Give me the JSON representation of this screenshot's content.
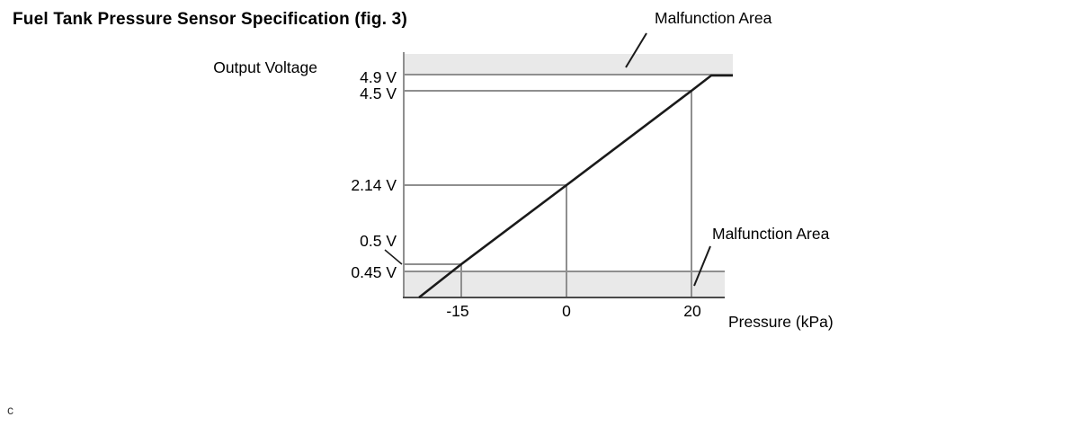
{
  "figure": {
    "corner_mark": "c"
  },
  "chart_data": {
    "type": "line",
    "title": "Fuel Tank Pressure Sensor Specification (fig. 3)",
    "xlabel": "Pressure (kPa)",
    "ylabel": "Output Voltage",
    "x_ticks": [
      {
        "value": -15,
        "label": "-15"
      },
      {
        "value": 0,
        "label": "0"
      },
      {
        "value": 20,
        "label": "20"
      }
    ],
    "y_ticks": [
      {
        "value": 4.9,
        "label": "4.9 V"
      },
      {
        "value": 4.5,
        "label": "4.5 V"
      },
      {
        "value": 2.14,
        "label": "2.14 V"
      },
      {
        "value": 0.5,
        "label": "0.5 V"
      },
      {
        "value": 0.45,
        "label": "0.45 V"
      }
    ],
    "series": [
      {
        "name": "output-voltage-vs-pressure",
        "points": [
          {
            "x": -21,
            "y": 0.0
          },
          {
            "x": -15,
            "y": 0.5
          },
          {
            "x": 0,
            "y": 2.14
          },
          {
            "x": 20,
            "y": 4.5
          },
          {
            "x": 23,
            "y": 4.9
          },
          {
            "x": 26,
            "y": 4.9
          }
        ]
      }
    ],
    "reference_points": [
      {
        "pressure_kpa": -15,
        "voltage_v": 0.5
      },
      {
        "pressure_kpa": 0,
        "voltage_v": 2.14
      },
      {
        "pressure_kpa": 20,
        "voltage_v": 4.5
      }
    ],
    "malfunction_areas": [
      {
        "position": "top",
        "threshold_v": 4.9,
        "label": "Malfunction Area"
      },
      {
        "position": "bottom",
        "threshold_v": 0.45,
        "label": "Malfunction Area"
      }
    ],
    "layout_hints": {
      "grid": "reference lines only",
      "legend": "none"
    },
    "colors": {
      "band_fill": "#e9e9e9",
      "reference_line": "#8f8f8f",
      "axis_dark": "#4a4a4a",
      "series_line": "#1a1a1a",
      "text": "#000000"
    }
  }
}
